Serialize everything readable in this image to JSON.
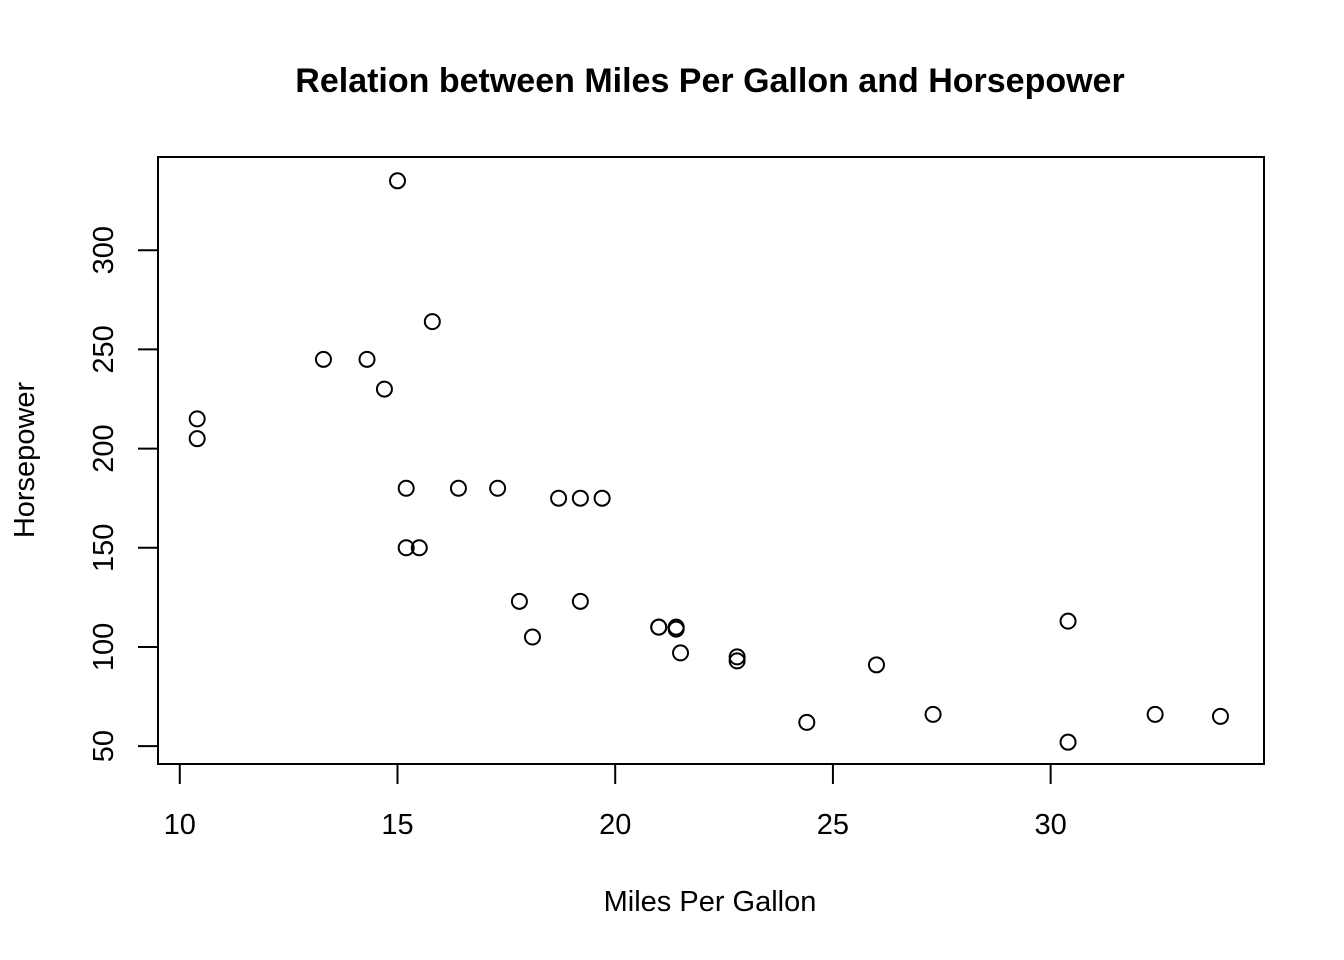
{
  "chart_data": {
    "type": "scatter",
    "title": "Relation between Miles Per Gallon and Horsepower",
    "xlabel": "Miles Per Gallon",
    "ylabel": "Horsepower",
    "xlim": [
      9.5,
      34.9
    ],
    "ylim": [
      41,
      347
    ],
    "grid": false,
    "x_ticks": [
      10,
      15,
      20,
      25,
      30
    ],
    "x_tick_labels": [
      "10",
      "15",
      "20",
      "25",
      "30"
    ],
    "y_ticks": [
      50,
      100,
      150,
      200,
      250,
      300
    ],
    "y_tick_labels": [
      "50",
      "100",
      "150",
      "200",
      "250",
      "300"
    ],
    "points": [
      {
        "x": 21.0,
        "y": 110
      },
      {
        "x": 21.0,
        "y": 110
      },
      {
        "x": 22.8,
        "y": 93
      },
      {
        "x": 21.4,
        "y": 110
      },
      {
        "x": 18.7,
        "y": 175
      },
      {
        "x": 18.1,
        "y": 105
      },
      {
        "x": 14.3,
        "y": 245
      },
      {
        "x": 24.4,
        "y": 62
      },
      {
        "x": 22.8,
        "y": 95
      },
      {
        "x": 19.2,
        "y": 123
      },
      {
        "x": 17.8,
        "y": 123
      },
      {
        "x": 16.4,
        "y": 180
      },
      {
        "x": 17.3,
        "y": 180
      },
      {
        "x": 15.2,
        "y": 180
      },
      {
        "x": 10.4,
        "y": 205
      },
      {
        "x": 10.4,
        "y": 215
      },
      {
        "x": 14.7,
        "y": 230
      },
      {
        "x": 32.4,
        "y": 66
      },
      {
        "x": 30.4,
        "y": 52
      },
      {
        "x": 33.9,
        "y": 65
      },
      {
        "x": 21.5,
        "y": 97
      },
      {
        "x": 15.5,
        "y": 150
      },
      {
        "x": 15.2,
        "y": 150
      },
      {
        "x": 13.3,
        "y": 245
      },
      {
        "x": 19.2,
        "y": 175
      },
      {
        "x": 27.3,
        "y": 66
      },
      {
        "x": 26.0,
        "y": 91
      },
      {
        "x": 30.4,
        "y": 113
      },
      {
        "x": 15.8,
        "y": 264
      },
      {
        "x": 19.7,
        "y": 175
      },
      {
        "x": 15.0,
        "y": 335
      },
      {
        "x": 21.4,
        "y": 109
      }
    ]
  }
}
